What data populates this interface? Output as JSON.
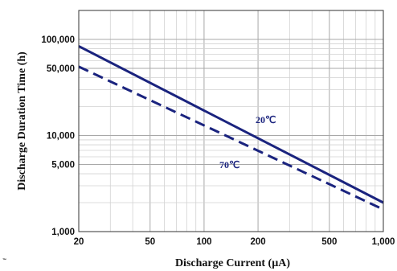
{
  "chart_data": {
    "type": "line",
    "title": "",
    "xlabel": "Discharge Current (µA)",
    "ylabel": "Discharge Duration Time (h)",
    "xscale": "log",
    "yscale": "log",
    "xlim": [
      20,
      1000
    ],
    "ylim": [
      1000,
      200000
    ],
    "grid": true,
    "x_ticks": [
      {
        "value": 20,
        "label": "20"
      },
      {
        "value": 50,
        "label": "50"
      },
      {
        "value": 100,
        "label": "100"
      },
      {
        "value": 200,
        "label": "200"
      },
      {
        "value": 500,
        "label": "500"
      },
      {
        "value": 1000,
        "label": "1,000"
      }
    ],
    "y_ticks": [
      {
        "value": 1000,
        "label": "1,000"
      },
      {
        "value": 5000,
        "label": "5,000"
      },
      {
        "value": 10000,
        "label": "10,000"
      },
      {
        "value": 50000,
        "label": "50,000"
      },
      {
        "value": 100000,
        "label": "100,000"
      }
    ],
    "series": [
      {
        "name": "20℃",
        "line": "solid",
        "color": "#1a237e",
        "x": [
          20,
          1000
        ],
        "y": [
          85000,
          2000
        ]
      },
      {
        "name": "70℃",
        "line": "dashed",
        "color": "#1a237e",
        "x": [
          20,
          1000
        ],
        "y": [
          52000,
          1700
        ]
      }
    ],
    "annotations": [
      {
        "text": "20℃",
        "series": 0
      },
      {
        "text": "70℃",
        "series": 1
      }
    ],
    "corner_text": "™"
  }
}
